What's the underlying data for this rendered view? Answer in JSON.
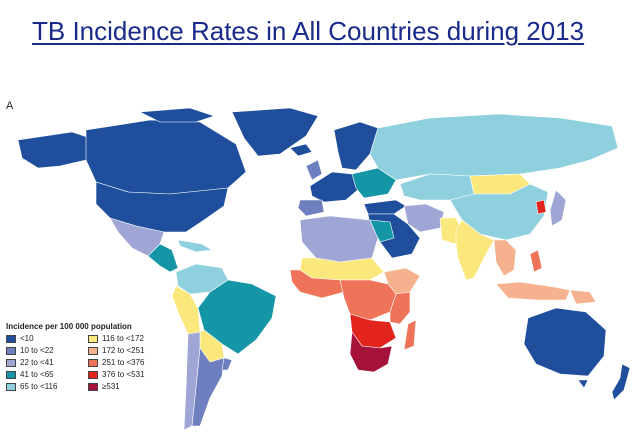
{
  "title": "TB Incidence Rates in All Countries during 2013",
  "panel_label": "A",
  "legend": {
    "title": "Incidence per 100 000 population",
    "items": [
      {
        "label": "<10",
        "color": "#1f4e9c"
      },
      {
        "label": "10 to <22",
        "color": "#6e7fbf"
      },
      {
        "label": "22 to <41",
        "color": "#9fa5d4"
      },
      {
        "label": "41 to <65",
        "color": "#1496a6"
      },
      {
        "label": "65 to <116",
        "color": "#8fd0df"
      },
      {
        "label": "116 to <172",
        "color": "#fbe87c"
      },
      {
        "label": "172 to <251",
        "color": "#f6b28e"
      },
      {
        "label": "251 to <376",
        "color": "#ef7358"
      },
      {
        "label": "376 to <531",
        "color": "#e3241c"
      },
      {
        "label": "≥531",
        "color": "#a5123a"
      }
    ]
  }
}
